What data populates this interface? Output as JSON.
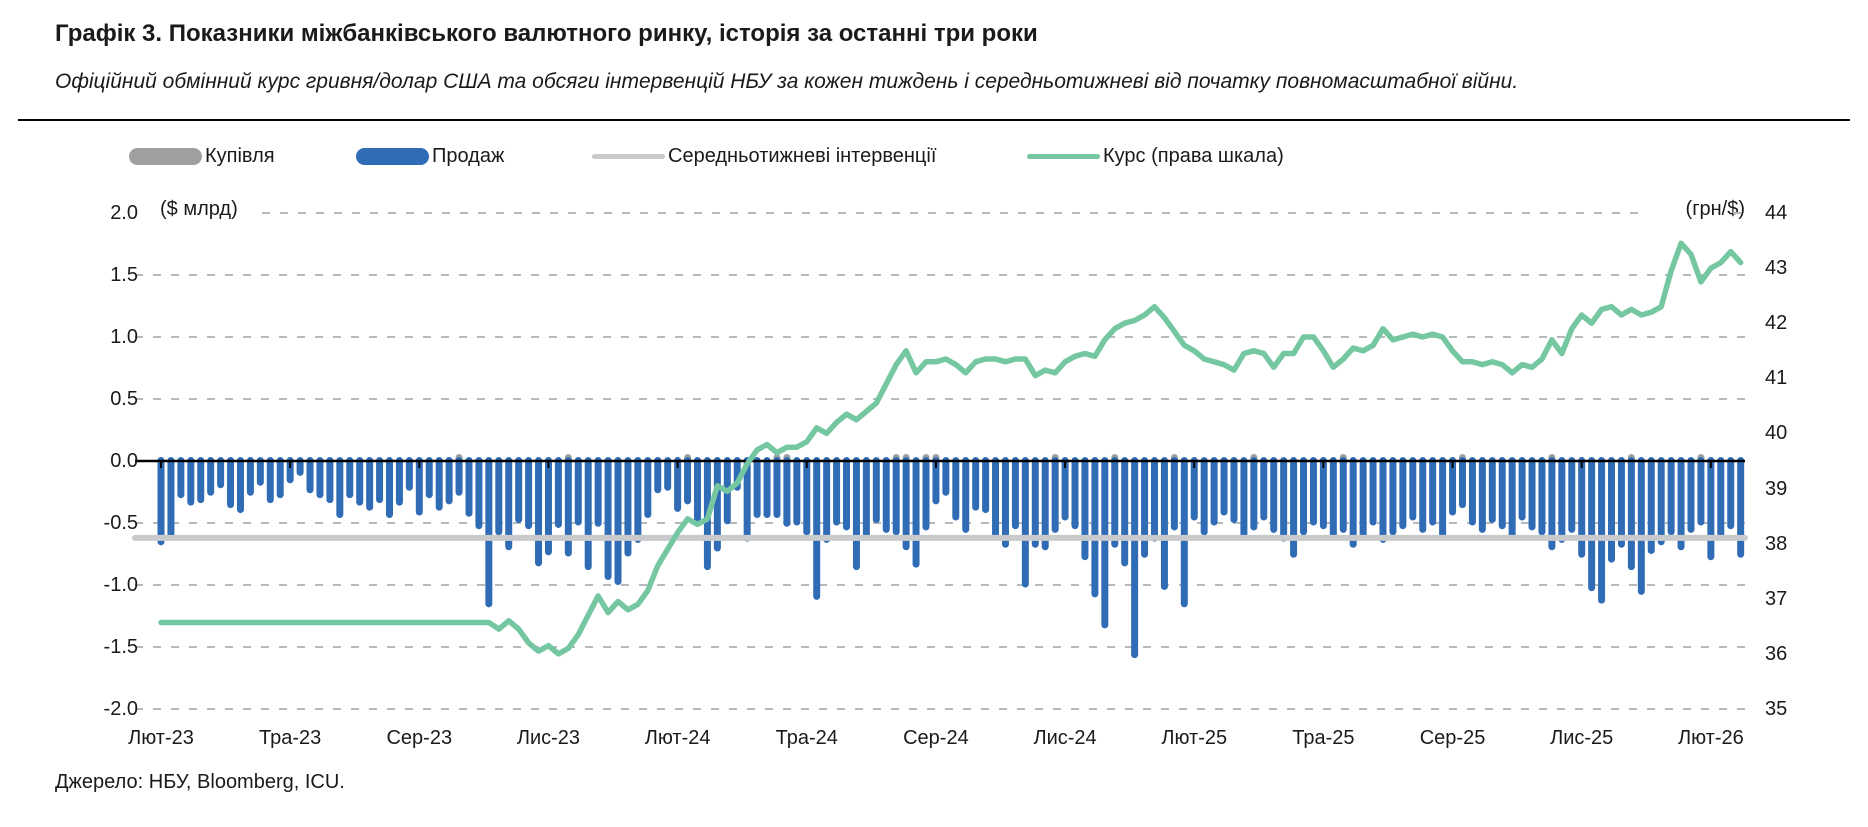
{
  "header": {
    "title": "Графік 3. Показники міжбанківського валютного ринку, історія за останні три роки",
    "subtitle": "Офіційний обмінний курс гривня/долар США та обсяги інтервенцій НБУ за кожен тиждень і середньотижневі від початку повномасштабної війни."
  },
  "legend": {
    "position": "top",
    "items": [
      {
        "id": "buy",
        "label": "Купівля",
        "swatch": "bar",
        "color": "#9e9fa1"
      },
      {
        "id": "sell",
        "label": "Продаж",
        "swatch": "bar",
        "color": "#2f6cb5"
      },
      {
        "id": "avg",
        "label": "Середньотижневі інтервенції",
        "swatch": "line",
        "color": "#c9cacc"
      },
      {
        "id": "rate",
        "label": "Курс (права шкала)",
        "swatch": "line",
        "color": "#74c7a1"
      }
    ]
  },
  "axes": {
    "left_unit": "($ млрд)",
    "right_unit": "(грн/$)",
    "left_tick_labels": [
      "2.0",
      "1.5",
      "1.0",
      "0.5",
      "0.0",
      "-0.5",
      "-1.0",
      "-1.5",
      "-2.0"
    ],
    "right_tick_labels": [
      "44",
      "43",
      "42",
      "41",
      "40",
      "39",
      "38",
      "37",
      "36",
      "35"
    ]
  },
  "source": "Джерело: НБУ, Bloomberg, ICU.",
  "colors": {
    "sell_bar": "#2f6cb5",
    "buy_bar": "#9e9fa1",
    "avg_line": "#c9cacc",
    "rate_line": "#74c7a1",
    "gridline": "#b4b9bc",
    "zero_line": "#000000",
    "text": "#1a1a1a"
  },
  "chart_data": {
    "type": "bar+line",
    "title": "Показники міжбанківського валютного ринку",
    "x_label": "",
    "left_ylabel": "($ млрд)",
    "right_ylabel": "(грн/$)",
    "left_ylim": [
      -2.0,
      2.0
    ],
    "right_ylim": [
      35,
      44
    ],
    "grid": "dashed-horizontal",
    "legend_position": "top",
    "x_tick_labels": [
      "Лют-23",
      "Тра-23",
      "Сер-23",
      "Лис-23",
      "Лют-24",
      "Тра-24",
      "Сер-24",
      "Лис-24",
      "Лют-25",
      "Тра-25",
      "Сер-25",
      "Лис-25",
      "Лют-26"
    ],
    "weeks_per_tick": 13,
    "series": [
      {
        "name": "Продаж",
        "type": "bar",
        "axis": "left",
        "values": [
          -0.68,
          -0.62,
          -0.3,
          -0.36,
          -0.34,
          -0.28,
          -0.22,
          -0.38,
          -0.42,
          -0.28,
          -0.2,
          -0.34,
          -0.3,
          -0.18,
          -0.12,
          -0.26,
          -0.3,
          -0.34,
          -0.46,
          -0.3,
          -0.36,
          -0.4,
          -0.34,
          -0.46,
          -0.36,
          -0.24,
          -0.44,
          -0.3,
          -0.4,
          -0.35,
          -0.28,
          -0.45,
          -0.55,
          -1.18,
          -0.6,
          -0.72,
          -0.5,
          -0.55,
          -0.85,
          -0.76,
          -0.54,
          -0.77,
          -0.52,
          -0.88,
          -0.53,
          -0.96,
          -1.0,
          -0.77,
          -0.66,
          -0.46,
          -0.26,
          -0.24,
          -0.41,
          -0.35,
          -0.51,
          -0.88,
          -0.73,
          -0.51,
          -0.24,
          -0.65,
          -0.46,
          -0.46,
          -0.46,
          -0.53,
          -0.52,
          -0.6,
          -1.12,
          -0.66,
          -0.52,
          -0.56,
          -0.88,
          -0.62,
          -0.5,
          -0.58,
          -0.6,
          -0.72,
          -0.86,
          -0.56,
          -0.35,
          -0.28,
          -0.48,
          -0.58,
          -0.4,
          -0.42,
          -0.62,
          -0.7,
          -0.55,
          -1.02,
          -0.7,
          -0.72,
          -0.58,
          -0.48,
          -0.55,
          -0.8,
          -1.1,
          -1.35,
          -0.7,
          -0.85,
          -1.59,
          -0.78,
          -0.65,
          -1.04,
          -0.56,
          -1.18,
          -0.48,
          -0.6,
          -0.52,
          -0.44,
          -0.5,
          -0.62,
          -0.56,
          -0.48,
          -0.58,
          -0.65,
          -0.78,
          -0.6,
          -0.52,
          -0.55,
          -0.64,
          -0.58,
          -0.7,
          -0.62,
          -0.52,
          -0.66,
          -0.6,
          -0.55,
          -0.48,
          -0.58,
          -0.52,
          -0.62,
          -0.44,
          -0.38,
          -0.52,
          -0.58,
          -0.5,
          -0.55,
          -0.62,
          -0.48,
          -0.56,
          -0.6,
          -0.72,
          -0.66,
          -0.58,
          -0.78,
          -1.05,
          -1.15,
          -0.82,
          -0.7,
          -0.88,
          -1.08,
          -0.75,
          -0.68,
          -0.6,
          -0.72,
          -0.58,
          -0.52,
          -0.8,
          -0.62,
          -0.55,
          -0.78
        ]
      },
      {
        "name": "Купівля",
        "type": "bar",
        "axis": "left",
        "value": 0.05,
        "weeks": [
          30,
          41,
          53,
          62,
          63,
          74,
          75,
          77,
          78,
          90,
          96,
          102,
          110,
          119,
          131,
          140,
          148,
          155
        ]
      },
      {
        "name": "Середньотижневі інтервенції",
        "type": "line",
        "axis": "left",
        "constant_value": -0.62
      },
      {
        "name": "Курс (права шкала)",
        "type": "line",
        "axis": "right",
        "values": [
          36.57,
          36.57,
          36.57,
          36.57,
          36.57,
          36.57,
          36.57,
          36.57,
          36.57,
          36.57,
          36.57,
          36.57,
          36.57,
          36.57,
          36.57,
          36.57,
          36.57,
          36.57,
          36.57,
          36.57,
          36.57,
          36.57,
          36.57,
          36.57,
          36.57,
          36.57,
          36.57,
          36.57,
          36.57,
          36.57,
          36.57,
          36.57,
          36.57,
          36.57,
          36.45,
          36.6,
          36.45,
          36.2,
          36.05,
          36.15,
          36.0,
          36.1,
          36.35,
          36.7,
          37.05,
          36.75,
          36.95,
          36.8,
          36.9,
          37.15,
          37.6,
          37.9,
          38.2,
          38.45,
          38.35,
          38.45,
          39.05,
          38.95,
          39.1,
          39.45,
          39.7,
          39.8,
          39.65,
          39.75,
          39.75,
          39.85,
          40.1,
          40.0,
          40.2,
          40.35,
          40.25,
          40.4,
          40.55,
          40.9,
          41.25,
          41.5,
          41.1,
          41.3,
          41.3,
          41.35,
          41.25,
          41.1,
          41.3,
          41.35,
          41.35,
          41.3,
          41.35,
          41.35,
          41.05,
          41.15,
          41.1,
          41.3,
          41.4,
          41.45,
          41.4,
          41.7,
          41.9,
          42.0,
          42.05,
          42.15,
          42.3,
          42.1,
          41.85,
          41.6,
          41.5,
          41.35,
          41.3,
          41.25,
          41.15,
          41.45,
          41.5,
          41.45,
          41.2,
          41.45,
          41.45,
          41.75,
          41.75,
          41.5,
          41.2,
          41.35,
          41.55,
          41.5,
          41.6,
          41.9,
          41.7,
          41.75,
          41.8,
          41.75,
          41.8,
          41.75,
          41.5,
          41.3,
          41.3,
          41.25,
          41.3,
          41.25,
          41.1,
          41.25,
          41.2,
          41.35,
          41.7,
          41.45,
          41.9,
          42.15,
          42.0,
          42.25,
          42.3,
          42.15,
          42.25,
          42.15,
          42.2,
          42.3,
          42.95,
          43.45,
          43.25,
          42.75,
          43.0,
          43.1,
          43.3,
          43.1
        ]
      }
    ]
  }
}
